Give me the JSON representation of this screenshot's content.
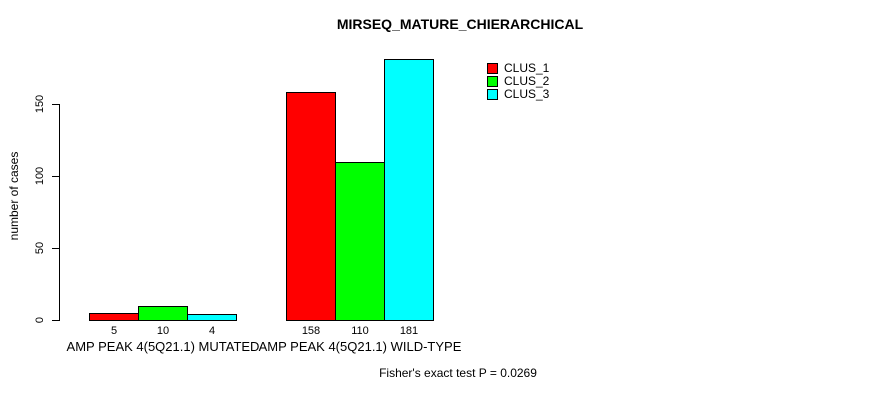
{
  "chart_data": {
    "type": "bar",
    "title": "MIRSEQ_MATURE_CHIERARCHICAL",
    "xlabel": "",
    "ylabel": "number of cases",
    "ylim": [
      0,
      181
    ],
    "yticks": [
      0,
      50,
      100,
      150
    ],
    "grid": false,
    "legend_position": "top-right",
    "categories": [
      "AMP PEAK 4(5Q21.1) MUTATED",
      "AMP PEAK 4(5Q21.1) WILD-TYPE"
    ],
    "series": [
      {
        "name": "CLUS_1",
        "color": "#FF0000",
        "values": [
          5,
          158
        ]
      },
      {
        "name": "CLUS_2",
        "color": "#00FF00",
        "values": [
          10,
          110
        ]
      },
      {
        "name": "CLUS_3",
        "color": "#00FFFF",
        "values": [
          4,
          181
        ]
      }
    ],
    "bar_value_labels": [
      [
        "5",
        "10",
        "4"
      ],
      [
        "158",
        "110",
        "181"
      ]
    ],
    "annotation": "Fisher's exact test P = 0.0269"
  },
  "colors": {
    "axis": "#000000",
    "text": "#000000",
    "background": "#FFFFFF"
  }
}
